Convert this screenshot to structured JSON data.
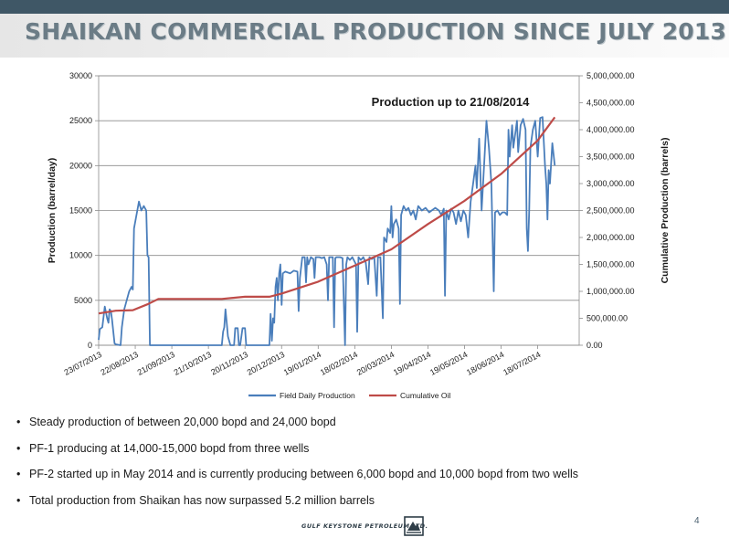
{
  "slide": {
    "title": "SHAIKAN COMMERCIAL PRODUCTION SINCE JULY 2013",
    "page_number": "4",
    "logo_text": "GULF KEYSTONE PETROLEUM LTD."
  },
  "bullets": [
    "Steady production of between 20,000 bopd and 24,000 bopd",
    "PF-1 producing at 14,000-15,000 bopd from three wells",
    "PF-2 started up in May 2014 and is currently producing between 6,000 bopd and 10,000 bopd from two wells",
    "Total production from Shaikan has now surpassed 5.2 million barrels"
  ],
  "colors": {
    "field_daily": "#4a7ebb",
    "cumulative": "#be4b48",
    "title_bar": "#3f5766"
  },
  "chart_data": {
    "type": "line",
    "title": "Production up to 21/08/2014",
    "ylabel": "Production (barrel/day)",
    "y2label": "Cumulative Production (barrels)",
    "ylim": [
      0,
      30000
    ],
    "y2lim": [
      0,
      5000000
    ],
    "xlim": [
      "2013-07-23",
      "2014-08-21"
    ],
    "y_ticks": [
      "0",
      "5000",
      "10000",
      "15000",
      "20000",
      "25000",
      "30000"
    ],
    "y2_ticks": [
      "0.00",
      "500,000.00",
      "1,000,000.00",
      "1,500,000.00",
      "2,000,000.00",
      "2,500,000.00",
      "3,000,000.00",
      "3,500,000.00",
      "4,000,000.00",
      "4,500,000.00",
      "5,000,000.00"
    ],
    "x_ticks": [
      {
        "date": "2013-07-23",
        "label": "23/07/2013"
      },
      {
        "date": "2013-08-22",
        "label": "22/08/2013"
      },
      {
        "date": "2013-09-21",
        "label": "21/09/2013"
      },
      {
        "date": "2013-10-21",
        "label": "21/10/2013"
      },
      {
        "date": "2013-11-20",
        "label": "20/11/2013"
      },
      {
        "date": "2013-12-20",
        "label": "20/12/2013"
      },
      {
        "date": "2014-01-19",
        "label": "19/01/2014"
      },
      {
        "date": "2014-02-18",
        "label": "18/02/2014"
      },
      {
        "date": "2014-03-20",
        "label": "20/03/2014"
      },
      {
        "date": "2014-04-19",
        "label": "19/04/2014"
      },
      {
        "date": "2014-05-19",
        "label": "19/05/2014"
      },
      {
        "date": "2014-06-18",
        "label": "18/06/2014"
      },
      {
        "date": "2014-07-18",
        "label": "18/07/2014"
      }
    ],
    "legend_position": "bottom",
    "grid": "horizontal",
    "series": [
      {
        "name": "Field Daily Production",
        "axis": "left",
        "points": [
          [
            "2013-07-23",
            600
          ],
          [
            "2013-07-24",
            1800
          ],
          [
            "2013-07-26",
            2000
          ],
          [
            "2013-07-28",
            4300
          ],
          [
            "2013-07-30",
            3000
          ],
          [
            "2013-07-31",
            2500
          ],
          [
            "2013-08-01",
            4000
          ],
          [
            "2013-08-02",
            3800
          ],
          [
            "2013-08-03",
            2800
          ],
          [
            "2013-08-05",
            200
          ],
          [
            "2013-08-06",
            100
          ],
          [
            "2013-08-10",
            0
          ],
          [
            "2013-08-11",
            2000
          ],
          [
            "2013-08-13",
            4000
          ],
          [
            "2013-08-15",
            5000
          ],
          [
            "2013-08-17",
            6000
          ],
          [
            "2013-08-19",
            6500
          ],
          [
            "2013-08-20",
            6200
          ],
          [
            "2013-08-21",
            13000
          ],
          [
            "2013-08-23",
            14500
          ],
          [
            "2013-08-25",
            16000
          ],
          [
            "2013-08-27",
            15000
          ],
          [
            "2013-08-29",
            15500
          ],
          [
            "2013-08-31",
            15000
          ],
          [
            "2013-09-01",
            10000
          ],
          [
            "2013-09-02",
            9800
          ],
          [
            "2013-09-03",
            0
          ],
          [
            "2013-11-01",
            0
          ],
          [
            "2013-11-02",
            1500
          ],
          [
            "2013-11-03",
            2000
          ],
          [
            "2013-11-04",
            4000
          ],
          [
            "2013-11-05",
            2500
          ],
          [
            "2013-11-06",
            1000
          ],
          [
            "2013-11-08",
            0
          ],
          [
            "2013-11-11",
            0
          ],
          [
            "2013-11-12",
            1900
          ],
          [
            "2013-11-14",
            1900
          ],
          [
            "2013-11-15",
            0
          ],
          [
            "2013-11-16",
            0
          ],
          [
            "2013-11-18",
            1900
          ],
          [
            "2013-11-20",
            1900
          ],
          [
            "2013-11-21",
            0
          ],
          [
            "2013-12-10",
            0
          ],
          [
            "2013-12-11",
            3500
          ],
          [
            "2013-12-12",
            500
          ],
          [
            "2013-12-13",
            3000
          ],
          [
            "2013-12-14",
            2500
          ],
          [
            "2013-12-15",
            6500
          ],
          [
            "2013-12-16",
            7500
          ],
          [
            "2013-12-17",
            5000
          ],
          [
            "2013-12-18",
            8000
          ],
          [
            "2013-12-19",
            9000
          ],
          [
            "2013-12-20",
            4500
          ],
          [
            "2013-12-21",
            8000
          ],
          [
            "2013-12-23",
            8200
          ],
          [
            "2013-12-27",
            8000
          ],
          [
            "2013-12-30",
            8300
          ],
          [
            "2014-01-02",
            8200
          ],
          [
            "2014-01-03",
            3800
          ],
          [
            "2014-01-04",
            7500
          ],
          [
            "2014-01-06",
            9800
          ],
          [
            "2014-01-08",
            9800
          ],
          [
            "2014-01-09",
            7000
          ],
          [
            "2014-01-10",
            9800
          ],
          [
            "2014-01-11",
            9000
          ],
          [
            "2014-01-13",
            9800
          ],
          [
            "2014-01-15",
            9600
          ],
          [
            "2014-01-16",
            7500
          ],
          [
            "2014-01-17",
            9800
          ],
          [
            "2014-01-20",
            9800
          ],
          [
            "2014-01-22",
            9700
          ],
          [
            "2014-01-24",
            9800
          ],
          [
            "2014-01-26",
            9000
          ],
          [
            "2014-01-27",
            5000
          ],
          [
            "2014-01-28",
            9800
          ],
          [
            "2014-01-31",
            9800
          ],
          [
            "2014-02-01",
            2000
          ],
          [
            "2014-02-02",
            9700
          ],
          [
            "2014-02-03",
            9800
          ],
          [
            "2014-02-06",
            9800
          ],
          [
            "2014-02-08",
            9700
          ],
          [
            "2014-02-10",
            0
          ],
          [
            "2014-02-11",
            9000
          ],
          [
            "2014-02-12",
            9800
          ],
          [
            "2014-02-14",
            9500
          ],
          [
            "2014-02-16",
            9800
          ],
          [
            "2014-02-19",
            9000
          ],
          [
            "2014-02-20",
            1500
          ],
          [
            "2014-02-21",
            9800
          ],
          [
            "2014-02-23",
            9500
          ],
          [
            "2014-02-25",
            9800
          ],
          [
            "2014-02-27",
            9200
          ],
          [
            "2014-03-01",
            6800
          ],
          [
            "2014-03-02",
            9800
          ],
          [
            "2014-03-04",
            9600
          ],
          [
            "2014-03-06",
            9800
          ],
          [
            "2014-03-08",
            5500
          ],
          [
            "2014-03-09",
            9800
          ],
          [
            "2014-03-11",
            9800
          ],
          [
            "2014-03-13",
            3000
          ],
          [
            "2014-03-14",
            12000
          ],
          [
            "2014-03-16",
            11500
          ],
          [
            "2014-03-17",
            13000
          ],
          [
            "2014-03-19",
            12500
          ],
          [
            "2014-03-20",
            15500
          ],
          [
            "2014-03-21",
            12000
          ],
          [
            "2014-03-22",
            13500
          ],
          [
            "2014-03-24",
            14000
          ],
          [
            "2014-03-26",
            13000
          ],
          [
            "2014-03-27",
            4600
          ],
          [
            "2014-03-28",
            14500
          ],
          [
            "2014-03-30",
            15500
          ],
          [
            "2014-04-01",
            15000
          ],
          [
            "2014-04-03",
            15300
          ],
          [
            "2014-04-05",
            14500
          ],
          [
            "2014-04-07",
            15000
          ],
          [
            "2014-04-09",
            14000
          ],
          [
            "2014-04-11",
            15500
          ],
          [
            "2014-04-14",
            15000
          ],
          [
            "2014-04-17",
            15300
          ],
          [
            "2014-04-20",
            14800
          ],
          [
            "2014-04-22",
            15000
          ],
          [
            "2014-04-25",
            15300
          ],
          [
            "2014-04-28",
            15000
          ],
          [
            "2014-04-30",
            14500
          ],
          [
            "2014-05-02",
            15200
          ],
          [
            "2014-05-03",
            5500
          ],
          [
            "2014-05-04",
            15000
          ],
          [
            "2014-05-06",
            14000
          ],
          [
            "2014-05-08",
            15200
          ],
          [
            "2014-05-10",
            14800
          ],
          [
            "2014-05-12",
            13500
          ],
          [
            "2014-05-14",
            15000
          ],
          [
            "2014-05-16",
            13800
          ],
          [
            "2014-05-18",
            15000
          ],
          [
            "2014-05-20",
            14500
          ],
          [
            "2014-05-22",
            12000
          ],
          [
            "2014-05-24",
            16000
          ],
          [
            "2014-05-26",
            18000
          ],
          [
            "2014-05-28",
            20000
          ],
          [
            "2014-05-29",
            17500
          ],
          [
            "2014-05-31",
            23000
          ],
          [
            "2014-06-01",
            19000
          ],
          [
            "2014-06-02",
            15000
          ],
          [
            "2014-06-04",
            20000
          ],
          [
            "2014-06-06",
            25000
          ],
          [
            "2014-06-08",
            22000
          ],
          [
            "2014-06-10",
            18000
          ],
          [
            "2014-06-12",
            6000
          ],
          [
            "2014-06-13",
            14800
          ],
          [
            "2014-06-15",
            15000
          ],
          [
            "2014-06-17",
            14500
          ],
          [
            "2014-06-19",
            14800
          ],
          [
            "2014-06-21",
            14800
          ],
          [
            "2014-06-23",
            14500
          ],
          [
            "2014-06-24",
            24000
          ],
          [
            "2014-06-25",
            21000
          ],
          [
            "2014-06-27",
            24500
          ],
          [
            "2014-06-28",
            22000
          ],
          [
            "2014-06-30",
            24000
          ],
          [
            "2014-07-01",
            25000
          ],
          [
            "2014-07-02",
            21500
          ],
          [
            "2014-07-04",
            24500
          ],
          [
            "2014-07-06",
            25200
          ],
          [
            "2014-07-08",
            24000
          ],
          [
            "2014-07-09",
            13000
          ],
          [
            "2014-07-10",
            10500
          ],
          [
            "2014-07-11",
            15000
          ],
          [
            "2014-07-12",
            22000
          ],
          [
            "2014-07-14",
            24000
          ],
          [
            "2014-07-16",
            25000
          ],
          [
            "2014-07-18",
            21000
          ],
          [
            "2014-07-20",
            25300
          ],
          [
            "2014-07-22",
            25400
          ],
          [
            "2014-07-24",
            20000
          ],
          [
            "2014-07-25",
            18000
          ],
          [
            "2014-07-26",
            14000
          ],
          [
            "2014-07-27",
            19500
          ],
          [
            "2014-07-28",
            18000
          ],
          [
            "2014-07-30",
            22500
          ],
          [
            "2014-08-01",
            20000
          ]
        ]
      },
      {
        "name": "Cumulative Oil",
        "axis": "right",
        "points": [
          [
            "2013-07-23",
            590000
          ],
          [
            "2013-08-06",
            640000
          ],
          [
            "2013-08-20",
            650000
          ],
          [
            "2013-09-01",
            760000
          ],
          [
            "2013-09-10",
            860000
          ],
          [
            "2013-11-01",
            860000
          ],
          [
            "2013-11-20",
            900000
          ],
          [
            "2013-12-10",
            900000
          ],
          [
            "2013-12-20",
            960000
          ],
          [
            "2014-01-19",
            1180000
          ],
          [
            "2014-02-18",
            1480000
          ],
          [
            "2014-03-20",
            1780000
          ],
          [
            "2014-04-19",
            2250000
          ],
          [
            "2014-05-19",
            2680000
          ],
          [
            "2014-06-18",
            3180000
          ],
          [
            "2014-07-18",
            3800000
          ],
          [
            "2014-08-01",
            4230000
          ]
        ]
      }
    ]
  }
}
